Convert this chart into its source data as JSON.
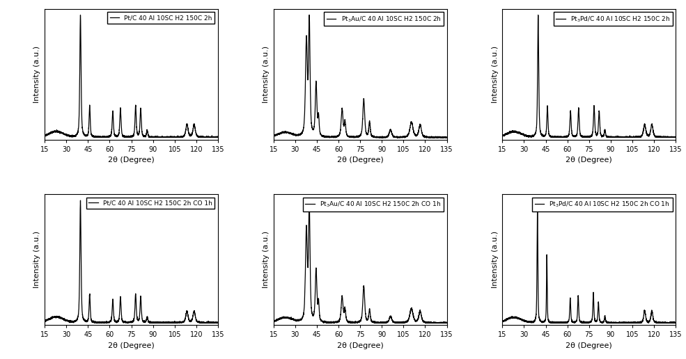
{
  "labels": [
    "Pt/C 40 Al 10SC H2 150C 2h",
    "$\\mathregular{Pt_3}$Au/C 40 Al 10SC H2 150C 2h",
    "$\\mathregular{Pt_3}$Pd/C 40 Al 10SC H2 150C 2h",
    "Pt/C 40 Al 10SC H2 150C 2h CO 1h",
    "$\\mathregular{Pt_3}$Au/C 40 Al 10SC H2 150C 2h CO 1h",
    "$\\mathregular{Pt_3}$Pd/C 40 Al 10SC H2 150C 2h CO 1h"
  ],
  "xlabel": "2θ (Degree)",
  "ylabel": "Intensity (a.u.)",
  "xlim": [
    15,
    135
  ],
  "xticks": [
    15,
    30,
    45,
    60,
    75,
    90,
    105,
    120,
    135
  ],
  "background_color": "#ffffff",
  "line_color": "#000000"
}
